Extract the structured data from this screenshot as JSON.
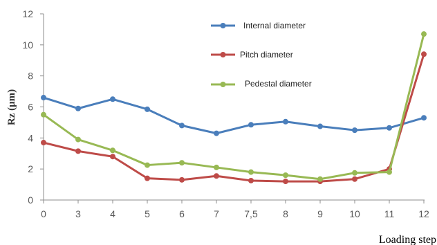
{
  "chart_data": {
    "type": "line",
    "categories": [
      "0",
      "3",
      "4",
      "5",
      "6",
      "7",
      "7,5",
      "8",
      "9",
      "10",
      "11",
      "12"
    ],
    "series": [
      {
        "name": "Internal diameter",
        "color": "#4a7ebb",
        "values": [
          6.6,
          5.9,
          6.5,
          5.85,
          4.8,
          4.3,
          4.85,
          5.05,
          4.75,
          4.5,
          4.65,
          5.3
        ]
      },
      {
        "name": "Pitch diameter",
        "color": "#be4b48",
        "values": [
          3.7,
          3.15,
          2.8,
          1.4,
          1.3,
          1.55,
          1.25,
          1.2,
          1.2,
          1.35,
          2.0,
          9.4
        ]
      },
      {
        "name": "Pedestal diameter",
        "color": "#98b954",
        "values": [
          5.5,
          3.9,
          3.2,
          2.25,
          2.4,
          2.1,
          1.8,
          1.6,
          1.35,
          1.75,
          1.8,
          10.7
        ]
      }
    ],
    "xlabel": "Loading step",
    "ylabel": "Rz (μm)",
    "ylim": [
      0,
      12
    ],
    "yticks": [
      "0",
      "2",
      "4",
      "6",
      "8",
      "10",
      "12"
    ],
    "grid": false,
    "legend_position": "top-center"
  }
}
